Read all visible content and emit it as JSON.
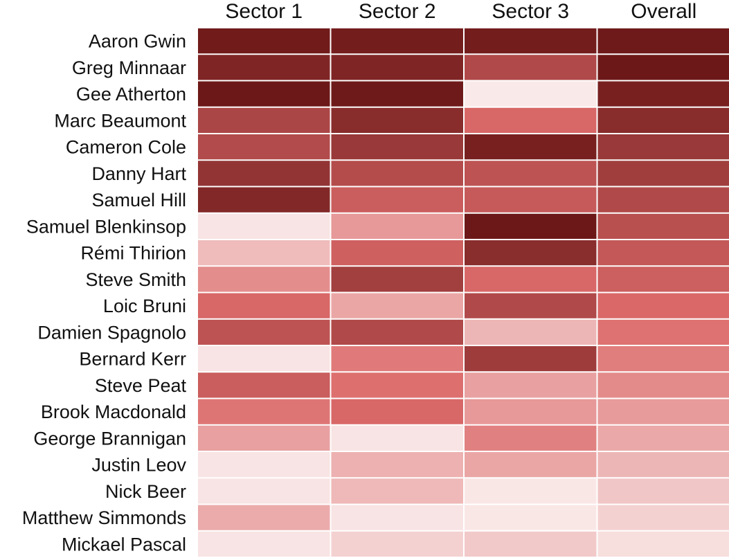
{
  "chart_data": {
    "type": "heatmap",
    "title": "",
    "xlabel": "",
    "ylabel": "",
    "columns": [
      "Sector 1",
      "Sector 2",
      "Sector 3",
      "Overall"
    ],
    "rows": [
      "Aaron Gwin",
      "Greg Minnaar",
      "Gee Atherton",
      "Marc Beaumont",
      "Cameron Cole",
      "Danny Hart",
      "Samuel Hill",
      "Samuel Blenkinsop",
      "Rémi Thirion",
      "Steve Smith",
      "Loic Bruni",
      "Damien Spagnolo",
      "Bernard Kerr",
      "Steve Peat",
      "Brook Macdonald",
      "George Brannigan",
      "Justin Leov",
      "Nick Beer",
      "Matthew Simmonds",
      "Mickael Pascal"
    ],
    "values": [
      [
        0.98,
        0.97,
        0.97,
        0.99
      ],
      [
        0.92,
        0.92,
        0.7,
        1.0
      ],
      [
        1.0,
        0.99,
        0.03,
        0.95
      ],
      [
        0.72,
        0.88,
        0.52,
        0.88
      ],
      [
        0.69,
        0.8,
        0.95,
        0.8
      ],
      [
        0.83,
        0.68,
        0.64,
        0.77
      ],
      [
        0.9,
        0.58,
        0.6,
        0.7
      ],
      [
        0.05,
        0.33,
        1.0,
        0.66
      ],
      [
        0.2,
        0.56,
        0.87,
        0.61
      ],
      [
        0.37,
        0.76,
        0.52,
        0.57
      ],
      [
        0.52,
        0.28,
        0.7,
        0.51
      ],
      [
        0.64,
        0.7,
        0.22,
        0.47
      ],
      [
        0.05,
        0.44,
        0.78,
        0.43
      ],
      [
        0.58,
        0.48,
        0.3,
        0.38
      ],
      [
        0.46,
        0.52,
        0.33,
        0.32
      ],
      [
        0.3,
        0.05,
        0.42,
        0.27
      ],
      [
        0.05,
        0.24,
        0.28,
        0.22
      ],
      [
        0.05,
        0.21,
        0.04,
        0.16
      ],
      [
        0.26,
        0.05,
        0.04,
        0.12
      ],
      [
        0.05,
        0.12,
        0.15,
        0.07
      ]
    ],
    "color_scale": {
      "low": "#fbf2f1",
      "mid": "#dc6a6a",
      "high": "#6d1818"
    },
    "legend": "none",
    "grid": false
  }
}
